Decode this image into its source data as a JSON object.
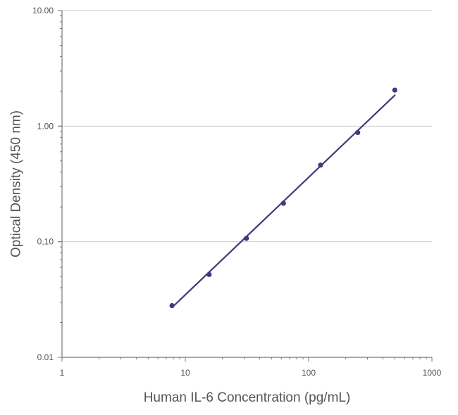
{
  "chart_data": {
    "type": "scatter",
    "title": "",
    "xlabel": "Human IL-6 Concentration (pg/mL)",
    "ylabel": "Optical Density (450 nm)",
    "xscale": "log",
    "yscale": "log",
    "xlim": [
      1,
      1000
    ],
    "ylim": [
      0.01,
      10
    ],
    "x_ticks": [
      "1",
      "10",
      "100",
      "1000"
    ],
    "y_ticks": [
      "0.01",
      "0,10",
      "1.00",
      "10.00"
    ],
    "grid": "horizontal",
    "legend": "none",
    "colors": {
      "series": "#3d3b7a",
      "grid": "#c8c8c8",
      "axis": "#777777",
      "text": "#555555"
    },
    "series": [
      {
        "points": [
          {
            "x": 7.8,
            "y": 0.028
          },
          {
            "x": 15.6,
            "y": 0.052
          },
          {
            "x": 31.3,
            "y": 0.107
          },
          {
            "x": 62.5,
            "y": 0.215
          },
          {
            "x": 125,
            "y": 0.46
          },
          {
            "x": 250,
            "y": 0.88
          },
          {
            "x": 500,
            "y": 2.05
          }
        ],
        "fit_line": {
          "x": [
            7.8,
            500
          ],
          "y": [
            0.027,
            1.85
          ]
        }
      }
    ]
  }
}
